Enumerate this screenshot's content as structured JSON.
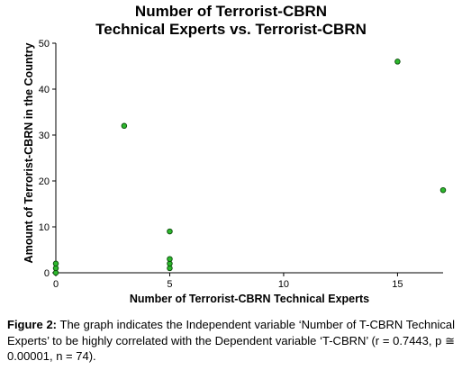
{
  "chart_data": {
    "type": "scatter",
    "title_line1": "Number of Terrorist-CBRN",
    "title_line2": "Technical Experts vs. Terrorist-CBRN",
    "xlabel": "Number of Terrorist-CBRN Technical Experts",
    "ylabel": "Amount of Terrorist-CBRN in the Country",
    "xlim": [
      0,
      17
    ],
    "ylim": [
      0,
      50
    ],
    "x_ticks": [
      0,
      5,
      10,
      15
    ],
    "y_ticks": [
      0,
      10,
      20,
      30,
      40,
      50
    ],
    "grid": false,
    "point_color": "#2db82d",
    "points": [
      {
        "x": 0,
        "y": 0
      },
      {
        "x": 0,
        "y": 1
      },
      {
        "x": 0,
        "y": 2
      },
      {
        "x": 3,
        "y": 32
      },
      {
        "x": 5,
        "y": 1
      },
      {
        "x": 5,
        "y": 2
      },
      {
        "x": 5,
        "y": 3
      },
      {
        "x": 5,
        "y": 9
      },
      {
        "x": 15,
        "y": 46
      },
      {
        "x": 17,
        "y": 18
      }
    ]
  },
  "caption": {
    "label": "Figure 2:",
    "text": " The graph indicates the Independent variable ‘Number of T-CBRN Technical Experts’ to be highly correlated with the Dependent variable ‘T-CBRN’ (r = 0.7443, p ≅ 0.00001, n = 74)."
  }
}
